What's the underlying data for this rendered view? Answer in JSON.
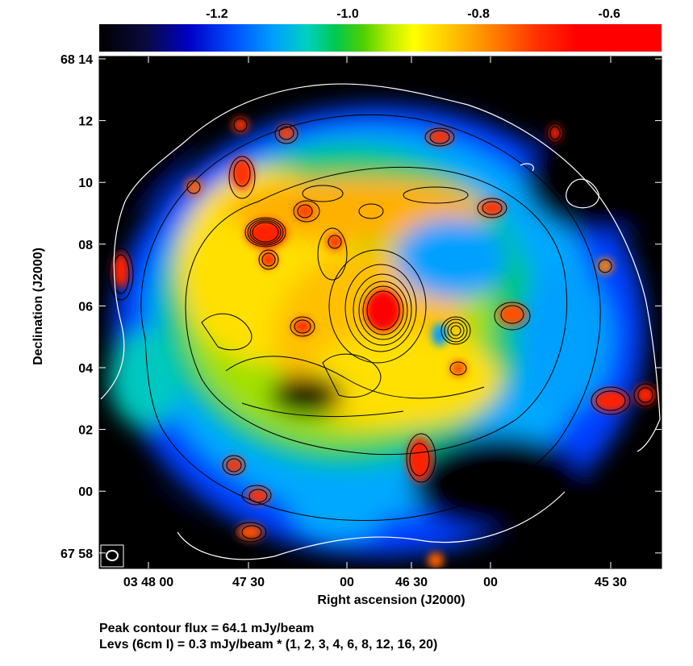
{
  "chart_data": {
    "type": "heatmap",
    "title": "",
    "xlabel": "Right ascension (J2000)",
    "ylabel": "Declination (J2000)",
    "colorbar": {
      "ticks": [
        -1.2,
        -1.0,
        -0.8,
        -0.6
      ],
      "tick_labels": [
        "-1.2",
        "-1.0",
        "-0.8",
        "-0.6"
      ],
      "range": [
        -1.38,
        -0.52
      ],
      "placement": "top"
    },
    "x_tick_labels": [
      "03 48 00",
      "47 30",
      "00",
      "46 30",
      "00",
      "45 30"
    ],
    "y_tick_labels": [
      "68 14",
      "12",
      "10",
      "08",
      "06",
      "04",
      "02",
      "00",
      "67 58"
    ],
    "grid": false,
    "contours": {
      "peak_flux": "64.1 mJy/beam",
      "base_level": "0.3 mJy/beam",
      "multipliers": [
        1,
        2,
        3,
        4,
        6,
        8,
        12,
        16,
        20
      ]
    },
    "beam_marker": "bottom-left"
  },
  "caption": {
    "line1": "Peak contour flux =  64.1 mJy/beam",
    "line2": "Levs (6cm I) = 0.3 mJy/beam * (1, 2, 3, 4, 6, 8, 12, 16, 20)"
  }
}
